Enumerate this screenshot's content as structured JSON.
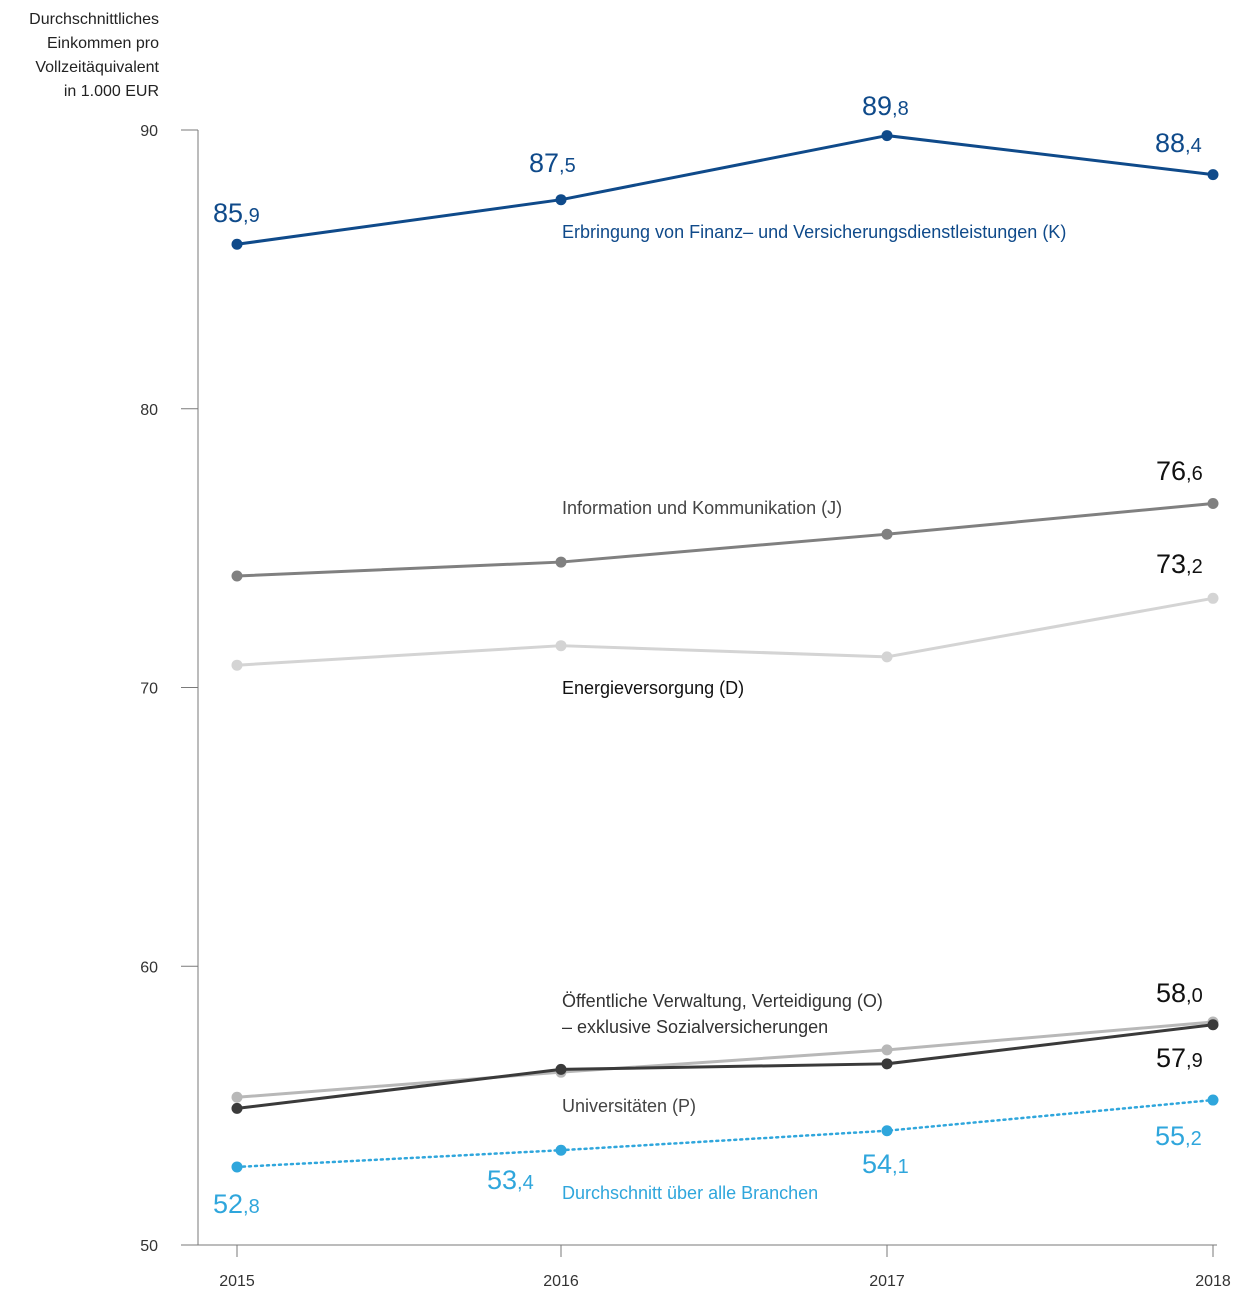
{
  "chart_data": {
    "type": "line",
    "ylabel_lines": [
      "Durchschnittliches",
      "Einkommen pro",
      "Vollzeitäquivalent",
      "in 1.000 EUR"
    ],
    "ylim": [
      50,
      90
    ],
    "yticks": [
      "50",
      "60",
      "70",
      "80",
      "90"
    ],
    "categories": [
      "2015",
      "2016",
      "2017",
      "2018"
    ],
    "grid": false,
    "series": [
      {
        "name": "Erbringung von Finanz– und Versicherungsdienstleistungen (K)",
        "values": [
          85.9,
          87.5,
          89.8,
          88.4
        ],
        "color": "#0f4a8a",
        "style": "solid",
        "labels": [
          {
            "whole": "85",
            "decimal": ",9"
          },
          {
            "whole": "87",
            "decimal": ",5"
          },
          {
            "whole": "89",
            "decimal": ",8"
          },
          {
            "whole": "88",
            "decimal": ",4"
          }
        ]
      },
      {
        "name": "Information und Kommunikation (J)",
        "values": [
          74.0,
          74.5,
          75.5,
          76.6
        ],
        "color": "#808080",
        "style": "solid",
        "labels": [
          null,
          null,
          null,
          {
            "whole": "76",
            "decimal": ",6"
          }
        ]
      },
      {
        "name": "Energieversorgung (D)",
        "values": [
          70.8,
          71.5,
          71.1,
          73.2
        ],
        "color": "#d4d4d4",
        "style": "solid",
        "labels": [
          null,
          null,
          null,
          {
            "whole": "73",
            "decimal": ",2"
          }
        ]
      },
      {
        "name": "Öffentliche Verwaltung, Verteidigung (O) – exklusive Sozialversicherungen",
        "name_lines": [
          "Öffentliche Verwaltung, Verteidigung (O)",
          "– exklusive Sozialversicherungen"
        ],
        "values": [
          55.3,
          56.2,
          57.0,
          58.0
        ],
        "color": "#b8b8b8",
        "style": "solid",
        "labels": [
          null,
          null,
          null,
          {
            "whole": "58",
            "decimal": ",0"
          }
        ]
      },
      {
        "name": "Universitäten (P)",
        "values": [
          54.9,
          56.3,
          56.5,
          57.9
        ],
        "color": "#3a3a3a",
        "style": "solid",
        "labels": [
          null,
          null,
          null,
          {
            "whole": "57",
            "decimal": ",9"
          }
        ]
      },
      {
        "name": "Durchschnitt über alle Branchen",
        "values": [
          52.8,
          53.4,
          54.1,
          55.2
        ],
        "color": "#2fa6dc",
        "style": "dotted",
        "labels": [
          {
            "whole": "52",
            "decimal": ",8"
          },
          {
            "whole": "53",
            "decimal": ",4"
          },
          {
            "whole": "54",
            "decimal": ",1"
          },
          {
            "whole": "55",
            "decimal": ",2"
          }
        ]
      }
    ]
  }
}
